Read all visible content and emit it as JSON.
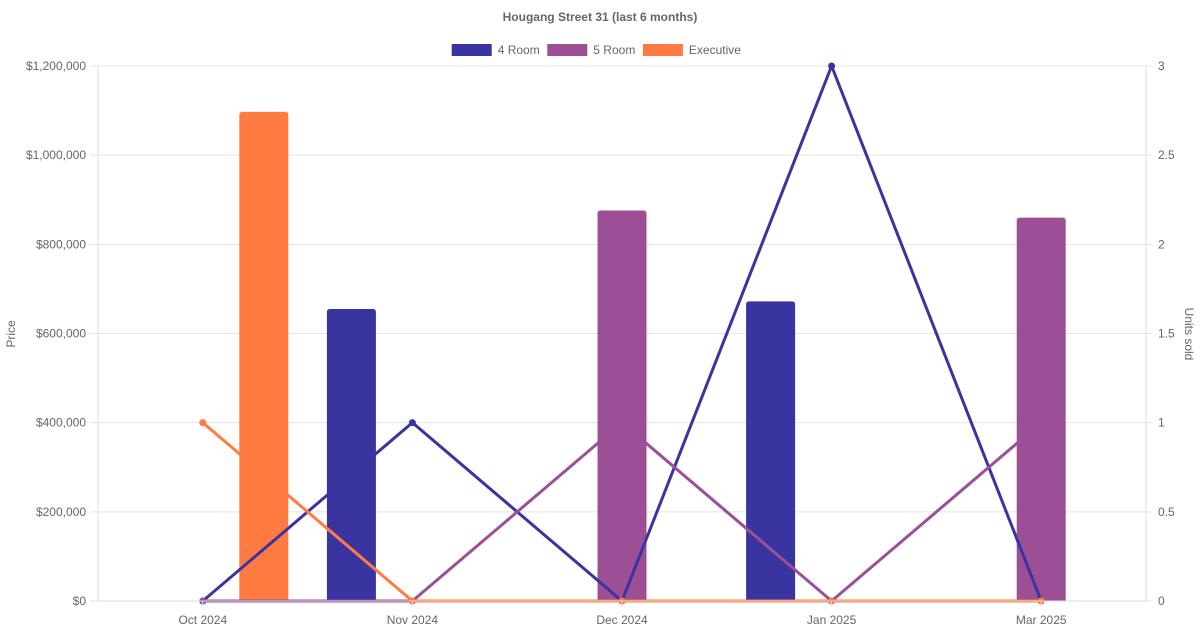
{
  "chart_data": {
    "type": "bar",
    "title": "Hougang Street 31 (last 6 months)",
    "categories": [
      "Oct 2024",
      "Nov 2024",
      "Dec 2024",
      "Jan 2025",
      "Mar 2025"
    ],
    "y_left": {
      "label": "Price",
      "range": [
        0,
        1200000
      ],
      "ticks": [
        0,
        200000,
        400000,
        600000,
        800000,
        1000000,
        1200000
      ],
      "tick_labels": [
        "$0",
        "$200,000",
        "$400,000",
        "$600,000",
        "$800,000",
        "$1,000,000",
        "$1,200,000"
      ]
    },
    "y_right": {
      "label": "Units sold",
      "range": [
        0,
        3
      ],
      "ticks": [
        0,
        0.5,
        1,
        1.5,
        2,
        2.5,
        3
      ],
      "tick_labels": [
        "0",
        "0.5",
        "1",
        "1.5",
        "2",
        "2.5",
        "3"
      ]
    },
    "series": [
      {
        "name": "4 Room",
        "color": "#3a34a0",
        "price": [
          null,
          655000,
          null,
          672000,
          null
        ],
        "units_sold": [
          0,
          1,
          0,
          3,
          0
        ]
      },
      {
        "name": "5 Room",
        "color": "#9c4f95",
        "price": [
          null,
          null,
          876000,
          null,
          860000
        ],
        "units_sold": [
          0,
          0,
          1,
          0,
          1
        ]
      },
      {
        "name": "Executive",
        "color": "#ff7b42",
        "price": [
          1097000,
          null,
          null,
          null,
          null
        ],
        "units_sold": [
          1,
          0,
          0,
          0,
          0
        ]
      }
    ],
    "legend_position": "top-center",
    "grid": true
  }
}
